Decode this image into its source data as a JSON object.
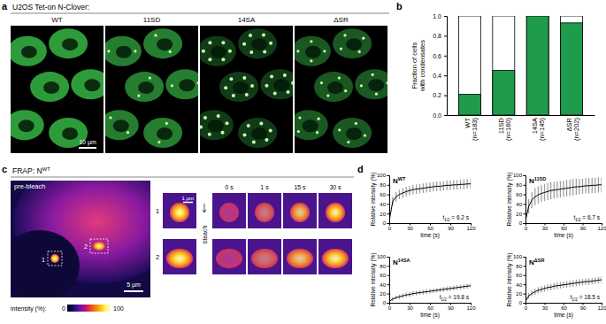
{
  "panel_labels": [
    "a",
    "b",
    "c",
    "d"
  ],
  "panel_a": {
    "title": "U2OS Tet-on N-Clover:",
    "conditions": [
      "WT",
      "11SD",
      "14SA",
      "ΔSR"
    ],
    "scale_bar": "10 µm"
  },
  "panel_c": {
    "title": "FRAP: N",
    "title_superscript": "WT",
    "image_label": "pre-bleach",
    "regions": [
      "1",
      "2"
    ],
    "bleach_label": "bleach",
    "times": [
      "0 s",
      "1 s",
      "15 s",
      "30 s"
    ],
    "scale_bar": "5 µm",
    "inset_scale_bar": "1 µm",
    "colorbar_label": "intensity (%):",
    "colorbar_range": [
      0,
      100
    ],
    "colorbar_ticks": [
      0,
      100
    ]
  },
  "chart_data": [
    {
      "type": "bar",
      "categories": [
        "WT",
        "11SD",
        "14SA",
        "ΔSR"
      ],
      "sample_size_labels": [
        "(n=183)",
        "(n=160)",
        "(n=145)",
        "(n=202)"
      ],
      "values": [
        0.21,
        0.45,
        1.0,
        0.93
      ],
      "color": "#1e9b4b",
      "ylabel": [
        "Fraction of cells",
        "with condensates"
      ],
      "ylim": [
        0,
        1
      ],
      "yticks": [
        {
          "value": 0,
          "label": "0.0"
        },
        0.2,
        0.4,
        0.6,
        0.8,
        {
          "value": 1,
          "label": "1.0"
        }
      ]
    },
    {
      "type": "line",
      "title": "N",
      "title_superscript": "WT",
      "annotation": {
        "symbol": "t",
        "subscript": "1/2",
        "text": " = 6.2 s"
      },
      "xlabel": "time (s)",
      "ylabel": "Relative intensity (%)",
      "color": "#000000",
      "x": [
        0,
        5,
        10,
        15,
        20,
        25,
        30,
        35,
        40,
        45,
        50,
        55,
        60,
        65,
        70,
        75,
        80,
        85,
        90,
        95,
        100,
        105,
        110,
        115,
        120
      ],
      "values": [
        5,
        45,
        55,
        60,
        63,
        66,
        68,
        70,
        71,
        72,
        73,
        74,
        75,
        76,
        77,
        77,
        78,
        79,
        79,
        80,
        80,
        81,
        81,
        82,
        82
      ],
      "errors": [
        3,
        10,
        10,
        10,
        10,
        10,
        10,
        10,
        10,
        10,
        10,
        10,
        10,
        10,
        10,
        10,
        10,
        10,
        10,
        10,
        10,
        10,
        10,
        10,
        10
      ],
      "xlim": [
        0,
        120
      ],
      "xticks": [
        0,
        30,
        60,
        90,
        120
      ],
      "ylim": [
        0,
        100
      ],
      "yticks": [
        0,
        20,
        40,
        60,
        80,
        100
      ]
    },
    {
      "type": "line",
      "title": "N",
      "title_superscript": "11SD",
      "annotation": {
        "symbol": "t",
        "subscript": "1/2",
        "text": " = 6.7 s"
      },
      "xlabel": "time (s)",
      "ylabel": "Relative intensity (%)",
      "color": "#000000",
      "x": [
        0,
        5,
        10,
        15,
        20,
        25,
        30,
        35,
        40,
        45,
        50,
        55,
        60,
        65,
        70,
        75,
        80,
        85,
        90,
        95,
        100,
        105,
        110,
        115,
        120
      ],
      "values": [
        5,
        35,
        48,
        55,
        59,
        62,
        64,
        66,
        68,
        69,
        70,
        71,
        72,
        73,
        74,
        75,
        76,
        76,
        77,
        78,
        78,
        79,
        79,
        80,
        80
      ],
      "errors": [
        3,
        15,
        17,
        18,
        18,
        18,
        18,
        18,
        18,
        17,
        17,
        17,
        17,
        17,
        17,
        17,
        17,
        16,
        16,
        16,
        16,
        16,
        16,
        16,
        16
      ],
      "xlim": [
        0,
        120
      ],
      "xticks": [
        0,
        30,
        60,
        90,
        120
      ],
      "ylim": [
        0,
        100
      ],
      "yticks": [
        0,
        20,
        40,
        60,
        80,
        100
      ]
    },
    {
      "type": "line",
      "title": "N",
      "title_superscript": "14SA",
      "annotation": {
        "symbol": "t",
        "subscript": "1/2",
        "text": " = 19.8 s"
      },
      "xlabel": "time (s)",
      "ylabel": "Relative intensity (%)",
      "color": "#000000",
      "x": [
        0,
        5,
        10,
        15,
        20,
        25,
        30,
        35,
        40,
        45,
        50,
        55,
        60,
        65,
        70,
        75,
        80,
        85,
        90,
        95,
        100,
        105,
        110,
        115,
        120
      ],
      "values": [
        3,
        8,
        11,
        13,
        15,
        17,
        18,
        20,
        21,
        22,
        23,
        24,
        25,
        26,
        27,
        28,
        29,
        30,
        31,
        32,
        33,
        34,
        35,
        36,
        37
      ],
      "errors": [
        2,
        4,
        4,
        5,
        5,
        5,
        5,
        5,
        5,
        5,
        5,
        5,
        5,
        5,
        5,
        5,
        5,
        5,
        5,
        5,
        5,
        5,
        5,
        5,
        5
      ],
      "xlim": [
        0,
        120
      ],
      "xticks": [
        0,
        30,
        60,
        90,
        120
      ],
      "ylim": [
        0,
        100
      ],
      "yticks": [
        0,
        20,
        40,
        60,
        80,
        100
      ]
    },
    {
      "type": "line",
      "title": "N",
      "title_superscript": "ΔSR",
      "annotation": {
        "symbol": "t",
        "subscript": "1/2",
        "text": " = 18.5 s"
      },
      "xlabel": "time (s)",
      "ylabel": "Relative intensity (%)",
      "color": "#000000",
      "x": [
        0,
        5,
        10,
        15,
        20,
        25,
        30,
        35,
        40,
        45,
        50,
        55,
        60,
        65,
        70,
        75,
        80,
        85,
        90,
        95,
        100,
        105,
        110,
        115,
        120
      ],
      "values": [
        3,
        15,
        20,
        24,
        27,
        29,
        31,
        33,
        34,
        36,
        37,
        38,
        39,
        40,
        41,
        42,
        43,
        44,
        45,
        46,
        46,
        47,
        48,
        49,
        50
      ],
      "errors": [
        2,
        6,
        6,
        7,
        7,
        7,
        7,
        7,
        7,
        7,
        7,
        7,
        7,
        7,
        7,
        7,
        7,
        7,
        7,
        7,
        7,
        7,
        7,
        7,
        7
      ],
      "xlim": [
        0,
        120
      ],
      "xticks": [
        0,
        30,
        60,
        90,
        120
      ],
      "ylim": [
        0,
        100
      ],
      "yticks": [
        0,
        20,
        40,
        60,
        80,
        100
      ]
    }
  ]
}
